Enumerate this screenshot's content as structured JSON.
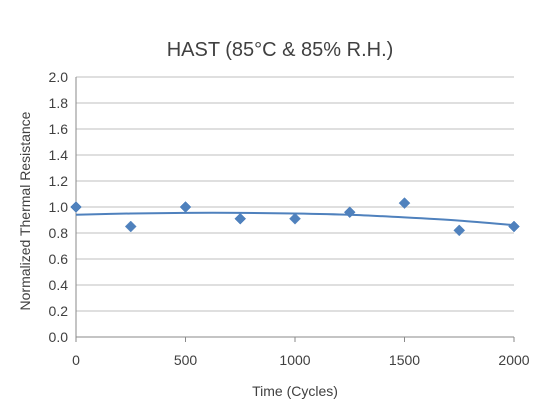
{
  "chart_data": {
    "type": "scatter",
    "title": "HAST (85°C & 85% R.H.)",
    "xlabel": "Time (Cycles)",
    "ylabel": "Normalized Thermal Resistance",
    "xlim": [
      0,
      2000
    ],
    "ylim": [
      0.0,
      2.0
    ],
    "x_ticks": [
      "0",
      "500",
      "1000",
      "1500",
      "2000"
    ],
    "y_ticks": [
      "0.0",
      "0.2",
      "0.4",
      "0.6",
      "0.8",
      "1.0",
      "1.2",
      "1.4",
      "1.6",
      "1.8",
      "2.0"
    ],
    "grid": true,
    "legend": "none",
    "series": [
      {
        "x": [
          0,
          250,
          500,
          750,
          1000,
          1250,
          1500,
          1750,
          2000
        ],
        "y": [
          1.0,
          0.85,
          1.0,
          0.91,
          0.91,
          0.96,
          1.03,
          0.82,
          0.85
        ],
        "marker": "diamond",
        "color": "#4f81bd"
      }
    ],
    "trendline": {
      "type": "polynomial",
      "color": "#4f81bd",
      "x": [
        0,
        250,
        500,
        750,
        1000,
        1250,
        1500,
        1750,
        2000
      ],
      "y": [
        0.94,
        0.95,
        0.955,
        0.955,
        0.95,
        0.94,
        0.92,
        0.895,
        0.86
      ]
    },
    "colors": {
      "grid": "#bfbfbf",
      "axis": "#8a8a8a",
      "text": "#404040"
    }
  }
}
